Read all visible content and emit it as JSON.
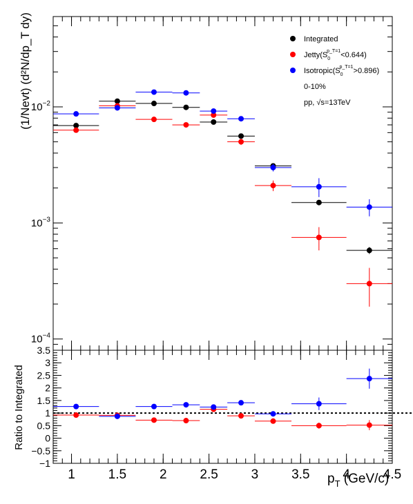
{
  "chart_data": [
    {
      "type": "scatter",
      "panel": "top",
      "ylabel": "(1/Nevt) (d²N/dp_T dy)",
      "yscale": "log",
      "xlim": [
        0.8,
        4.5
      ],
      "ylim": [
        8e-05,
        0.06
      ],
      "ytick_values": [
        0.0001,
        0.001,
        0.01
      ],
      "yticks": [
        {
          "base": "10",
          "exp": "−4"
        },
        {
          "base": "10",
          "exp": "−3"
        },
        {
          "base": "10",
          "exp": "−2"
        }
      ],
      "x_bins": [
        [
          0.8,
          1.3
        ],
        [
          1.3,
          1.7
        ],
        [
          1.7,
          2.1
        ],
        [
          2.1,
          2.4
        ],
        [
          2.4,
          2.7
        ],
        [
          2.7,
          3.0
        ],
        [
          3.0,
          3.4
        ],
        [
          3.4,
          4.0
        ],
        [
          4.0,
          4.5
        ]
      ],
      "x": [
        1.05,
        1.5,
        1.9,
        2.25,
        2.55,
        2.85,
        3.2,
        3.7,
        4.25
      ],
      "series": [
        {
          "name": "Integrated",
          "color": "#000000",
          "values": [
            0.0069,
            0.0112,
            0.0107,
            0.0099,
            0.0074,
            0.0056,
            0.0031,
            0.0015,
            0.00058
          ],
          "errors": [
            0.0002,
            0.0002,
            0.0002,
            0.0002,
            0.0002,
            0.0002,
            0.00012,
            8e-05,
            4e-05
          ]
        },
        {
          "name": "Jetty",
          "color": "#ff0000",
          "values": [
            0.0063,
            0.0102,
            0.0078,
            0.007,
            0.0085,
            0.005,
            0.0021,
            0.00075,
            0.0003
          ],
          "errors": [
            0.0003,
            0.0004,
            0.0003,
            0.0003,
            0.0004,
            0.0003,
            0.00022,
            0.00017,
            0.00011
          ]
        },
        {
          "name": "Isotropic",
          "color": "#0000ff",
          "values": [
            0.0087,
            0.0098,
            0.0134,
            0.0132,
            0.0092,
            0.0079,
            0.003,
            0.00205,
            0.00137
          ],
          "errors": [
            0.0004,
            0.0004,
            0.0005,
            0.0005,
            0.0004,
            0.0004,
            0.00022,
            0.00038,
            0.00023
          ]
        }
      ],
      "legend": {
        "position": "top-right",
        "entries": [
          {
            "series": "Integrated",
            "text": "Integrated",
            "color": "#000000"
          },
          {
            "series": "Jetty",
            "pre": "Jetty(S",
            "sub": "0",
            "sup": "p_T=1",
            "post": "<0.644)",
            "color": "#ff0000"
          },
          {
            "series": "Isotropic",
            "pre": "Isotropic(S",
            "sub": "0",
            "sup": "p_T=1",
            "post": ">0.896)",
            "color": "#0000ff"
          }
        ],
        "notes": [
          "0-10%",
          "pp, √s=13TeV"
        ]
      }
    },
    {
      "type": "scatter",
      "panel": "bottom",
      "ylabel": "Ratio to Integrated",
      "xlabel": "p_T (GeV/c)",
      "xlabel_main": "p",
      "xlabel_sub": "T",
      "xlabel_rest": " (GeV/c)",
      "xlim": [
        0.8,
        4.5
      ],
      "ylim": [
        -1,
        3.5
      ],
      "xticks": [
        "1",
        "1.5",
        "2",
        "2.5",
        "3",
        "3.5",
        "4",
        "4.5"
      ],
      "xtick_values": [
        1,
        1.5,
        2,
        2.5,
        3,
        3.5,
        4,
        4.5
      ],
      "yticks": [
        "−1",
        "−0.5",
        "0",
        "0.5",
        "1",
        "1.5",
        "2",
        "2.5",
        "3",
        "3.5"
      ],
      "ytick_values": [
        -1,
        -0.5,
        0,
        0.5,
        1,
        1.5,
        2,
        2.5,
        3,
        3.5
      ],
      "reference_line": 1.0,
      "x_bins": [
        [
          0.8,
          1.3
        ],
        [
          1.3,
          1.7
        ],
        [
          1.7,
          2.1
        ],
        [
          2.1,
          2.4
        ],
        [
          2.4,
          2.7
        ],
        [
          2.7,
          3.0
        ],
        [
          3.0,
          3.4
        ],
        [
          3.4,
          4.0
        ],
        [
          4.0,
          4.5
        ]
      ],
      "x": [
        1.05,
        1.5,
        1.9,
        2.25,
        2.55,
        2.85,
        3.2,
        3.7,
        4.25
      ],
      "series": [
        {
          "name": "Jetty",
          "color": "#ff0000",
          "values": [
            0.92,
            0.91,
            0.72,
            0.7,
            1.15,
            0.89,
            0.68,
            0.5,
            0.52
          ],
          "errors": [
            0.05,
            0.05,
            0.05,
            0.05,
            0.06,
            0.06,
            0.08,
            0.12,
            0.2
          ]
        },
        {
          "name": "Isotropic",
          "color": "#0000ff",
          "values": [
            1.26,
            0.87,
            1.26,
            1.33,
            1.24,
            1.41,
            0.97,
            1.37,
            2.37
          ],
          "errors": [
            0.06,
            0.05,
            0.06,
            0.06,
            0.06,
            0.07,
            0.08,
            0.25,
            0.4
          ]
        }
      ]
    }
  ]
}
